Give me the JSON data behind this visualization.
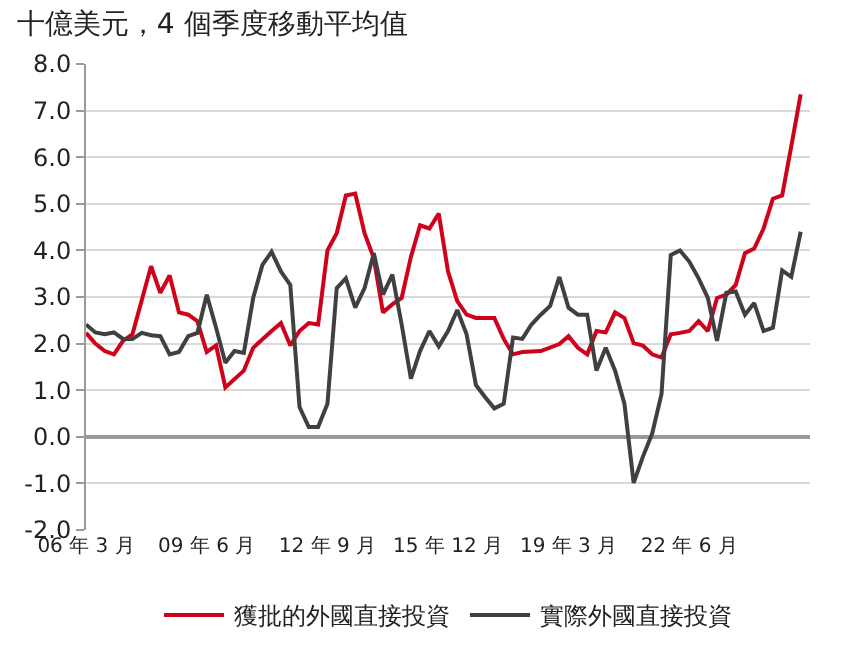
{
  "chart_data": {
    "type": "line",
    "title": "十億美元，4 個季度移動平均值",
    "xlim": [
      "2006-03",
      "2025-09"
    ],
    "xticks": [
      {
        "value": "2006-03",
        "label": "06 年 3 月"
      },
      {
        "value": "2009-06",
        "label": "09 年 6 月"
      },
      {
        "value": "2012-09",
        "label": "12 年 9 月"
      },
      {
        "value": "2015-12",
        "label": "15 年 12 月"
      },
      {
        "value": "2019-03",
        "label": "19 年 3 月"
      },
      {
        "value": "2022-06",
        "label": "22 年 6 月"
      }
    ],
    "ylim": [
      -2,
      8
    ],
    "yticks": [
      {
        "value": -2,
        "label": "-2.0"
      },
      {
        "value": -1,
        "label": "-1.0"
      },
      {
        "value": 0,
        "label": "0.0"
      },
      {
        "value": 1,
        "label": "1.0"
      },
      {
        "value": 2,
        "label": "2.0"
      },
      {
        "value": 3,
        "label": "3.0"
      },
      {
        "value": 4,
        "label": "4.0"
      },
      {
        "value": 5,
        "label": "5.0"
      },
      {
        "value": 6,
        "label": "6.0"
      },
      {
        "value": 7,
        "label": "7.0"
      },
      {
        "value": 8,
        "label": "8.0"
      }
    ],
    "grid": "y",
    "legend": "bottom",
    "marker": "none",
    "line_style": "solid",
    "series": [
      {
        "name": "獲批的外國直接投資",
        "color": "#d0021b",
        "x": [
          "2006-03",
          "2006-06",
          "2006-09",
          "2006-12",
          "2007-03",
          "2007-06",
          "2007-12",
          "2008-03",
          "2008-06",
          "2008-09",
          "2008-12",
          "2009-03",
          "2009-06",
          "2009-09",
          "2009-12",
          "2010-06",
          "2010-09",
          "2011-03",
          "2011-06",
          "2011-09",
          "2011-12",
          "2012-03",
          "2012-06",
          "2012-09",
          "2012-12",
          "2013-03",
          "2013-06",
          "2013-09",
          "2013-12",
          "2014-03",
          "2014-06",
          "2014-09",
          "2014-12",
          "2015-03",
          "2015-06",
          "2015-09",
          "2015-12",
          "2016-03",
          "2016-06",
          "2016-09",
          "2016-12",
          "2017-03",
          "2017-06",
          "2017-09",
          "2017-12",
          "2018-06",
          "2018-12",
          "2019-03",
          "2019-06",
          "2019-09",
          "2019-12",
          "2020-03",
          "2020-06",
          "2020-09",
          "2020-12",
          "2021-03",
          "2021-06",
          "2021-09",
          "2021-12",
          "2022-03",
          "2022-06",
          "2022-09",
          "2022-12",
          "2023-03",
          "2023-06",
          "2023-09",
          "2023-12",
          "2024-03",
          "2024-06",
          "2024-09",
          "2024-12",
          "2025-03",
          "2025-06"
        ],
        "values": [
          2.23,
          2.0,
          1.84,
          1.77,
          2.06,
          2.2,
          3.66,
          3.09,
          3.46,
          2.67,
          2.62,
          2.48,
          1.82,
          1.96,
          1.06,
          1.42,
          1.91,
          2.27,
          2.44,
          1.96,
          2.27,
          2.44,
          2.41,
          4.0,
          4.37,
          5.18,
          5.22,
          4.37,
          3.83,
          2.67,
          2.84,
          2.98,
          3.86,
          4.54,
          4.47,
          4.79,
          3.55,
          2.91,
          2.62,
          2.55,
          2.55,
          2.55,
          2.1,
          1.77,
          1.82,
          1.84,
          1.99,
          2.16,
          1.91,
          1.77,
          2.27,
          2.24,
          2.67,
          2.55,
          2.01,
          1.96,
          1.77,
          1.7,
          2.2,
          2.23,
          2.27,
          2.48,
          2.27,
          2.98,
          3.05,
          3.26,
          3.94,
          4.04,
          4.47,
          5.11,
          5.18,
          6.24,
          7.35
        ]
      },
      {
        "name": "實際外國直接投資",
        "color": "#404040",
        "x": [
          "2006-03",
          "2006-06",
          "2006-09",
          "2006-12",
          "2007-03",
          "2007-06",
          "2007-09",
          "2007-12",
          "2008-03",
          "2008-06",
          "2008-09",
          "2008-12",
          "2009-03",
          "2009-06",
          "2009-09",
          "2009-12",
          "2010-03",
          "2010-06",
          "2010-09",
          "2010-12",
          "2011-03",
          "2011-06",
          "2011-09",
          "2011-12",
          "2012-03",
          "2012-06",
          "2012-09",
          "2012-12",
          "2013-03",
          "2013-06",
          "2013-09",
          "2013-12",
          "2014-03",
          "2014-06",
          "2014-09",
          "2014-12",
          "2015-03",
          "2015-06",
          "2015-09",
          "2015-12",
          "2016-03",
          "2016-06",
          "2016-09",
          "2016-12",
          "2017-03",
          "2017-06",
          "2017-09",
          "2017-12",
          "2018-03",
          "2018-06",
          "2018-09",
          "2018-12",
          "2019-03",
          "2019-06",
          "2019-09",
          "2019-12",
          "2020-03",
          "2020-06",
          "2020-09",
          "2020-12",
          "2021-03",
          "2021-06",
          "2021-09",
          "2021-12",
          "2022-03",
          "2022-06",
          "2022-09",
          "2022-12",
          "2023-03",
          "2023-06",
          "2023-09",
          "2023-12",
          "2024-03",
          "2024-06",
          "2024-09",
          "2024-12",
          "2025-03",
          "2025-06"
        ],
        "values": [
          2.41,
          2.24,
          2.2,
          2.24,
          2.1,
          2.1,
          2.23,
          2.18,
          2.16,
          1.77,
          1.82,
          2.16,
          2.23,
          3.05,
          2.34,
          1.59,
          1.84,
          1.8,
          2.98,
          3.69,
          3.97,
          3.55,
          3.26,
          0.64,
          0.21,
          0.21,
          0.71,
          3.19,
          3.4,
          2.77,
          3.19,
          3.94,
          3.05,
          3.48,
          2.41,
          1.25,
          1.84,
          2.27,
          1.94,
          2.27,
          2.72,
          2.2,
          1.11,
          0.85,
          0.61,
          0.71,
          2.13,
          2.1,
          2.41,
          2.62,
          2.81,
          3.43,
          2.77,
          2.62,
          2.62,
          1.42,
          1.91,
          1.42,
          0.71,
          -0.99,
          -0.43,
          0.07,
          0.92,
          3.9,
          4.0,
          3.76,
          3.4,
          2.98,
          2.06,
          3.09,
          3.12,
          2.62,
          2.87,
          2.27,
          2.34,
          3.57,
          3.43,
          4.4
        ]
      }
    ]
  }
}
